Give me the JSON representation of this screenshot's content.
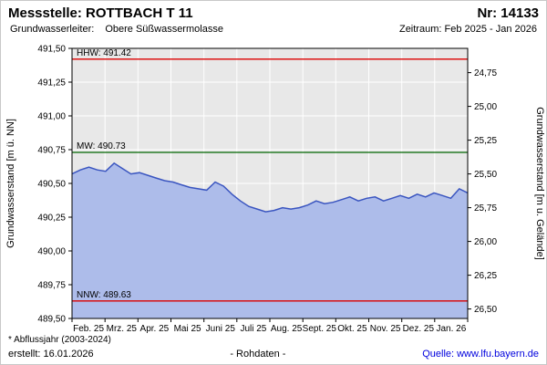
{
  "header": {
    "station_label": "Messstelle: ROTTBACH T 11",
    "number_label": "Nr: 14133",
    "aquifer_label": "Grundwasserleiter:",
    "aquifer_value": "Obere Süßwassermolasse",
    "period_label": "Zeitraum: Feb 2025 - Jan 2026"
  },
  "footer": {
    "note": "* Abflussjahr (2003-2024)",
    "created": "erstellt:  16.01.2026",
    "center": "- Rohdaten -",
    "source": "Quelle: www.lfu.bayern.de"
  },
  "chart_data": {
    "type": "area",
    "title": "",
    "ylabel_left": "Grundwasserstand [m ü. NN]",
    "ylabel_right": "Grundwasserstand [m u. Gelände]",
    "ylim_left": [
      489.5,
      491.5
    ],
    "left_tick_step": 0.25,
    "right_ticks": [
      24.75,
      25.0,
      25.25,
      25.5,
      25.75,
      26.0,
      26.25,
      26.5
    ],
    "x_tick_labels": [
      "Feb. 25",
      "Mrz. 25",
      "Apr. 25",
      "Mai 25",
      "Juni 25",
      "Juli 25",
      "Aug. 25",
      "Sept. 25",
      "Okt. 25",
      "Nov. 25",
      "Dez. 25",
      "Jan. 26"
    ],
    "grid": true,
    "legend": "none",
    "reference_lines": [
      {
        "name": "HHW",
        "label": "HHW: 491.42",
        "value": 491.42,
        "color": "#dd0000"
      },
      {
        "name": "MW",
        "label": "MW: 490.73",
        "value": 490.73,
        "color": "#006600"
      },
      {
        "name": "NNW",
        "label": "NNW: 489.63",
        "value": 489.63,
        "color": "#dd0000"
      }
    ],
    "series": [
      {
        "name": "Grundwasserstand Rohdaten",
        "points_per_month": 4,
        "values": [
          490.57,
          490.6,
          490.62,
          490.6,
          490.59,
          490.65,
          490.61,
          490.57,
          490.58,
          490.56,
          490.54,
          490.52,
          490.51,
          490.49,
          490.47,
          490.46,
          490.45,
          490.51,
          490.48,
          490.42,
          490.37,
          490.33,
          490.31,
          490.29,
          490.3,
          490.32,
          490.31,
          490.32,
          490.34,
          490.37,
          490.35,
          490.36,
          490.38,
          490.4,
          490.37,
          490.39,
          490.4,
          490.37,
          490.39,
          490.41,
          490.39,
          490.42,
          490.4,
          490.43,
          490.41,
          490.39,
          490.46,
          490.43
        ]
      }
    ],
    "colors": {
      "area_fill": "#adbcea",
      "line": "#3a55c0",
      "plot_bg": "#e8e8e8",
      "grid": "#ffffff",
      "axis": "#000000"
    }
  }
}
